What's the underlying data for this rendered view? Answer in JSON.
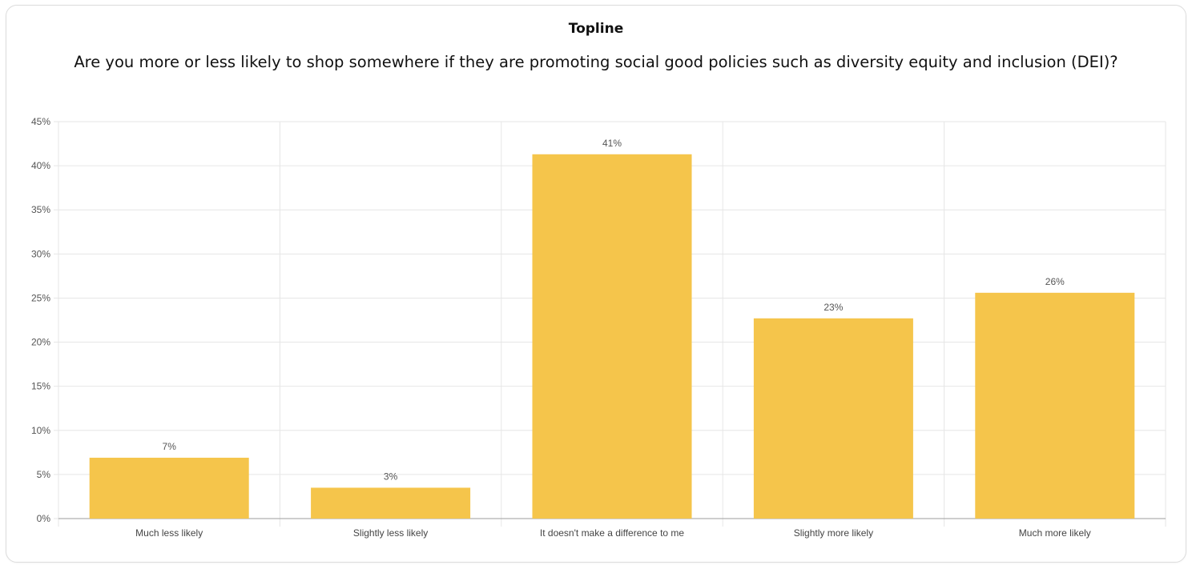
{
  "chart_data": {
    "type": "bar",
    "title": "Topline",
    "subtitle": "Are you more or less likely to shop somewhere if they are promoting social good policies such as diversity equity and inclusion (DEI)?",
    "categories": [
      "Much less likely",
      "Slightly less likely",
      "It doesn't make a difference to me",
      "Slightly more likely",
      "Much more likely"
    ],
    "values": [
      6.9,
      3.5,
      41.3,
      22.7,
      25.6
    ],
    "value_labels": [
      "7%",
      "3%",
      "41%",
      "23%",
      "26%"
    ],
    "ylim": [
      0,
      45
    ],
    "yticks": [
      0,
      5,
      10,
      15,
      20,
      25,
      30,
      35,
      40,
      45
    ],
    "ytick_labels": [
      "0%",
      "5%",
      "10%",
      "15%",
      "20%",
      "25%",
      "30%",
      "35%",
      "40%",
      "45%"
    ],
    "xlabel": "",
    "ylabel": "",
    "grid": true,
    "legend": "none",
    "bar_color": "#f5c54b",
    "grid_color": "#e6e6e6",
    "axis_color": "#9e9e9e",
    "text_color": "#555555"
  }
}
